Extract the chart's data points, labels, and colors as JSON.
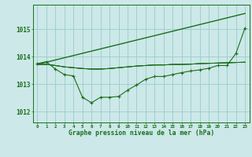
{
  "title": "Graphe pression niveau de la mer (hPa)",
  "bg_color": "#cce8e8",
  "grid_color": "#99cccc",
  "line_color": "#1a6e1a",
  "xlim": [
    -0.5,
    23.5
  ],
  "ylim": [
    1011.6,
    1015.9
  ],
  "yticks": [
    1012,
    1013,
    1014,
    1015
  ],
  "xtick_labels": [
    "0",
    "1",
    "2",
    "3",
    "4",
    "5",
    "6",
    "7",
    "8",
    "9",
    "10",
    "11",
    "12",
    "13",
    "14",
    "15",
    "16",
    "17",
    "18",
    "19",
    "20",
    "21",
    "22",
    "23"
  ],
  "xticks": [
    0,
    1,
    2,
    3,
    4,
    5,
    6,
    7,
    8,
    9,
    10,
    11,
    12,
    13,
    14,
    15,
    16,
    17,
    18,
    19,
    20,
    21,
    22,
    23
  ],
  "series_main": {
    "x": [
      0,
      1,
      2,
      3,
      4,
      5,
      6,
      7,
      8,
      9,
      10,
      11,
      12,
      13,
      14,
      15,
      16,
      17,
      18,
      19,
      20,
      21,
      22,
      23
    ],
    "y": [
      1013.75,
      1013.82,
      1013.55,
      1013.35,
      1013.3,
      1012.52,
      1012.32,
      1012.52,
      1012.52,
      1012.55,
      1012.78,
      1012.97,
      1013.18,
      1013.28,
      1013.28,
      1013.35,
      1013.42,
      1013.48,
      1013.52,
      1013.58,
      1013.68,
      1013.68,
      1014.12,
      1015.05
    ]
  },
  "series_flat1": {
    "x": [
      0,
      1,
      2,
      3,
      4,
      5,
      6,
      7,
      8,
      9,
      10,
      11,
      12,
      13,
      14,
      15,
      16,
      17,
      18,
      19,
      20,
      21,
      22,
      23
    ],
    "y": [
      1013.72,
      1013.72,
      1013.68,
      1013.63,
      1013.6,
      1013.57,
      1013.55,
      1013.55,
      1013.57,
      1013.6,
      1013.63,
      1013.66,
      1013.68,
      1013.7,
      1013.7,
      1013.72,
      1013.72,
      1013.73,
      1013.75,
      1013.76,
      1013.77,
      1013.78,
      1013.79,
      1013.8
    ]
  },
  "series_flat2": {
    "x": [
      0,
      1,
      2,
      3,
      4,
      5,
      6,
      7,
      8,
      9,
      10,
      11,
      12,
      13,
      14,
      15,
      16,
      17,
      18,
      19,
      20,
      21,
      22,
      23
    ],
    "y": [
      1013.72,
      1013.72,
      1013.68,
      1013.63,
      1013.6,
      1013.57,
      1013.55,
      1013.55,
      1013.57,
      1013.6,
      1013.63,
      1013.66,
      1013.68,
      1013.7,
      1013.7,
      1013.72,
      1013.72,
      1013.73,
      1013.75,
      1013.76,
      1013.77,
      1013.78,
      1013.79,
      1013.8
    ]
  },
  "series_flat3": {
    "x": [
      0,
      1,
      2,
      3,
      4,
      5,
      6,
      7,
      8,
      9,
      10,
      11,
      12,
      13,
      14,
      15,
      16,
      17,
      18,
      19,
      20,
      21,
      22,
      23
    ],
    "y": [
      1013.72,
      1013.72,
      1013.68,
      1013.63,
      1013.6,
      1013.57,
      1013.55,
      1013.55,
      1013.57,
      1013.6,
      1013.63,
      1013.66,
      1013.68,
      1013.7,
      1013.7,
      1013.72,
      1013.72,
      1013.73,
      1013.75,
      1013.76,
      1013.77,
      1013.78,
      1013.79,
      1013.8
    ]
  },
  "series_diagonal": {
    "x": [
      0,
      23
    ],
    "y": [
      1013.72,
      1015.58
    ]
  }
}
